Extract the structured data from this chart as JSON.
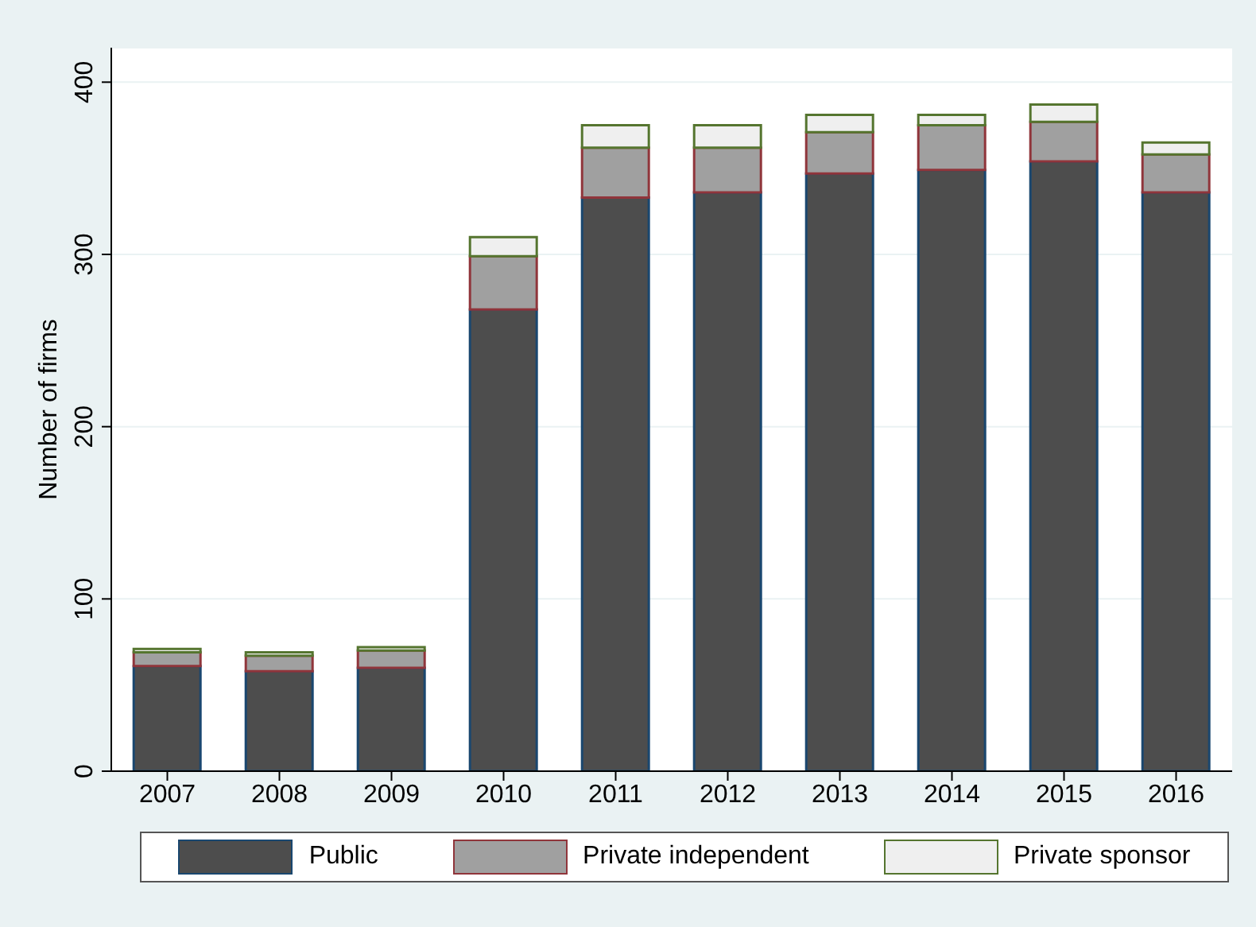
{
  "chart_data": {
    "type": "bar",
    "stacked": true,
    "ylabel": "Number of firms",
    "categories": [
      "2007",
      "2008",
      "2009",
      "2010",
      "2011",
      "2012",
      "2013",
      "2014",
      "2015",
      "2016"
    ],
    "series": [
      {
        "name": "Public",
        "color": "#4d4d4d",
        "values": [
          61,
          58,
          60,
          268,
          333,
          336,
          347,
          349,
          354,
          336
        ]
      },
      {
        "name": "Private independent",
        "color": "#a0a0a0",
        "values": [
          8,
          9,
          10,
          31,
          29,
          26,
          24,
          26,
          23,
          22
        ]
      },
      {
        "name": "Private sponsor",
        "color": "#efefef",
        "values": [
          2,
          2,
          2,
          11,
          13,
          13,
          10,
          6,
          10,
          7
        ]
      }
    ],
    "ylim": [
      0,
      420
    ],
    "yticks": [
      0,
      100,
      200,
      300,
      400
    ],
    "grid": "y",
    "legend": "bottom"
  }
}
